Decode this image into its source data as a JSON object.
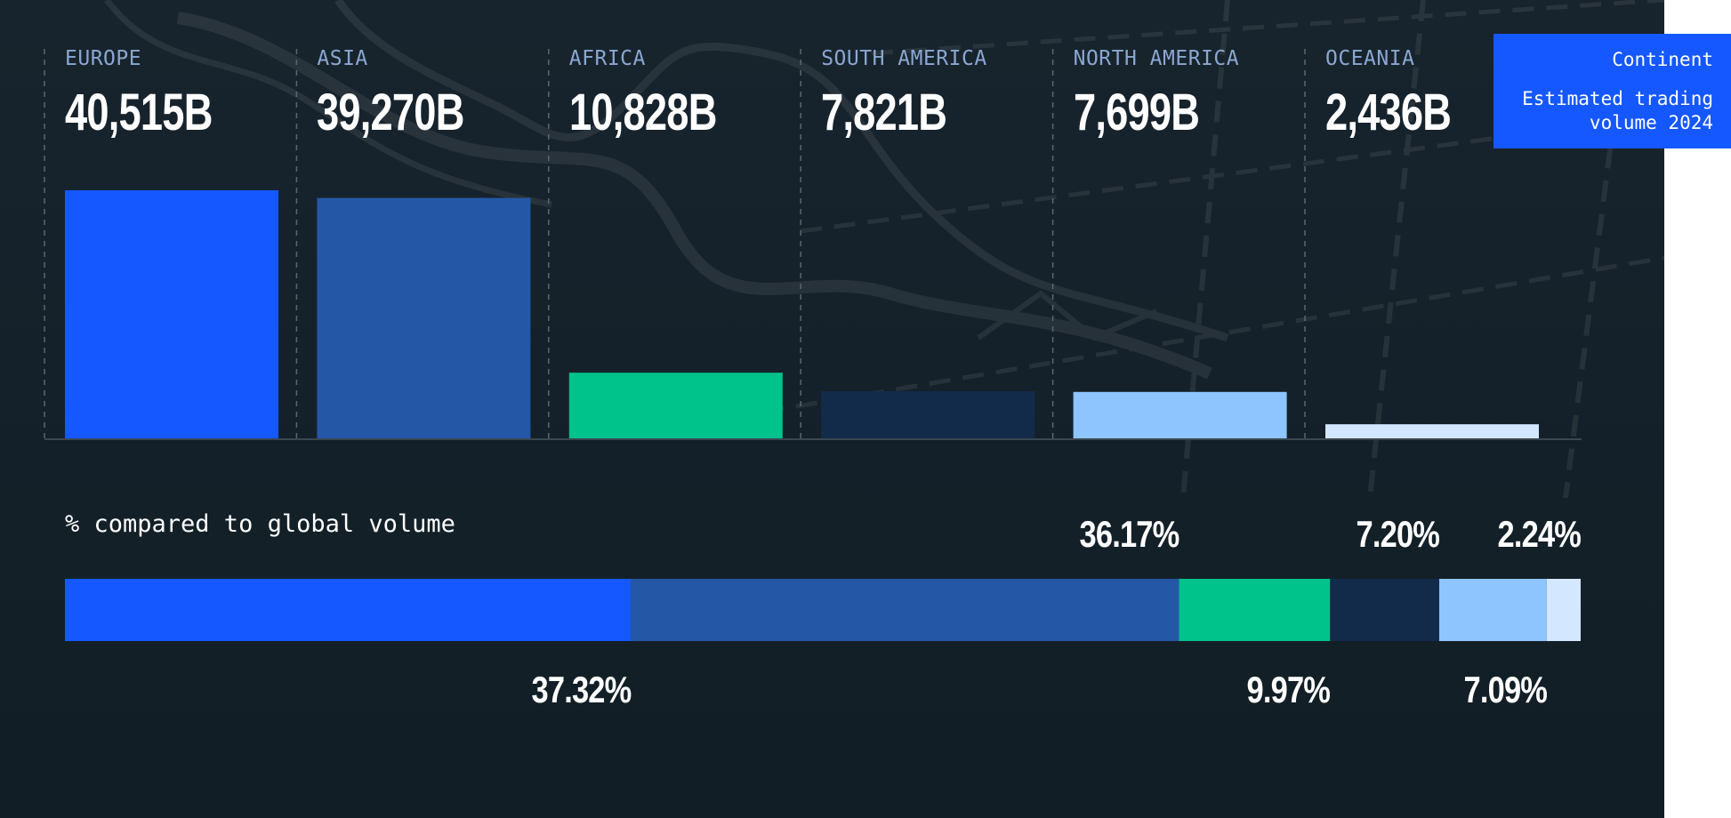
{
  "chart_data": {
    "type": "bar",
    "categories": [
      "EUROPE",
      "ASIA",
      "AFRICA",
      "SOUTH AMERICA",
      "NORTH AMERICA",
      "OCEANIA"
    ],
    "values": [
      40515,
      39270,
      10828,
      7821,
      7699,
      2436
    ],
    "value_labels": [
      "40,515B",
      "39,270B",
      "10,828B",
      "7,821B",
      "7,699B",
      "2,436B"
    ],
    "colors": [
      "#1558ff",
      "#2457a6",
      "#00c28b",
      "#122b4a",
      "#8ec5ff",
      "#d3e7ff"
    ],
    "grid": false,
    "legend": {
      "title": "Continent",
      "subtitle": "Estimated trading volume 2024",
      "placement": "top-right"
    }
  },
  "share_bar": {
    "title": "% compared to global volume",
    "percentages": [
      37.32,
      36.17,
      9.97,
      7.2,
      7.09,
      2.24
    ],
    "labels": [
      "37.32%",
      "36.17%",
      "9.97%",
      "7.20%",
      "7.09%",
      "2.24%"
    ],
    "label_positions": [
      "below",
      "above",
      "below",
      "above",
      "below",
      "above"
    ]
  }
}
